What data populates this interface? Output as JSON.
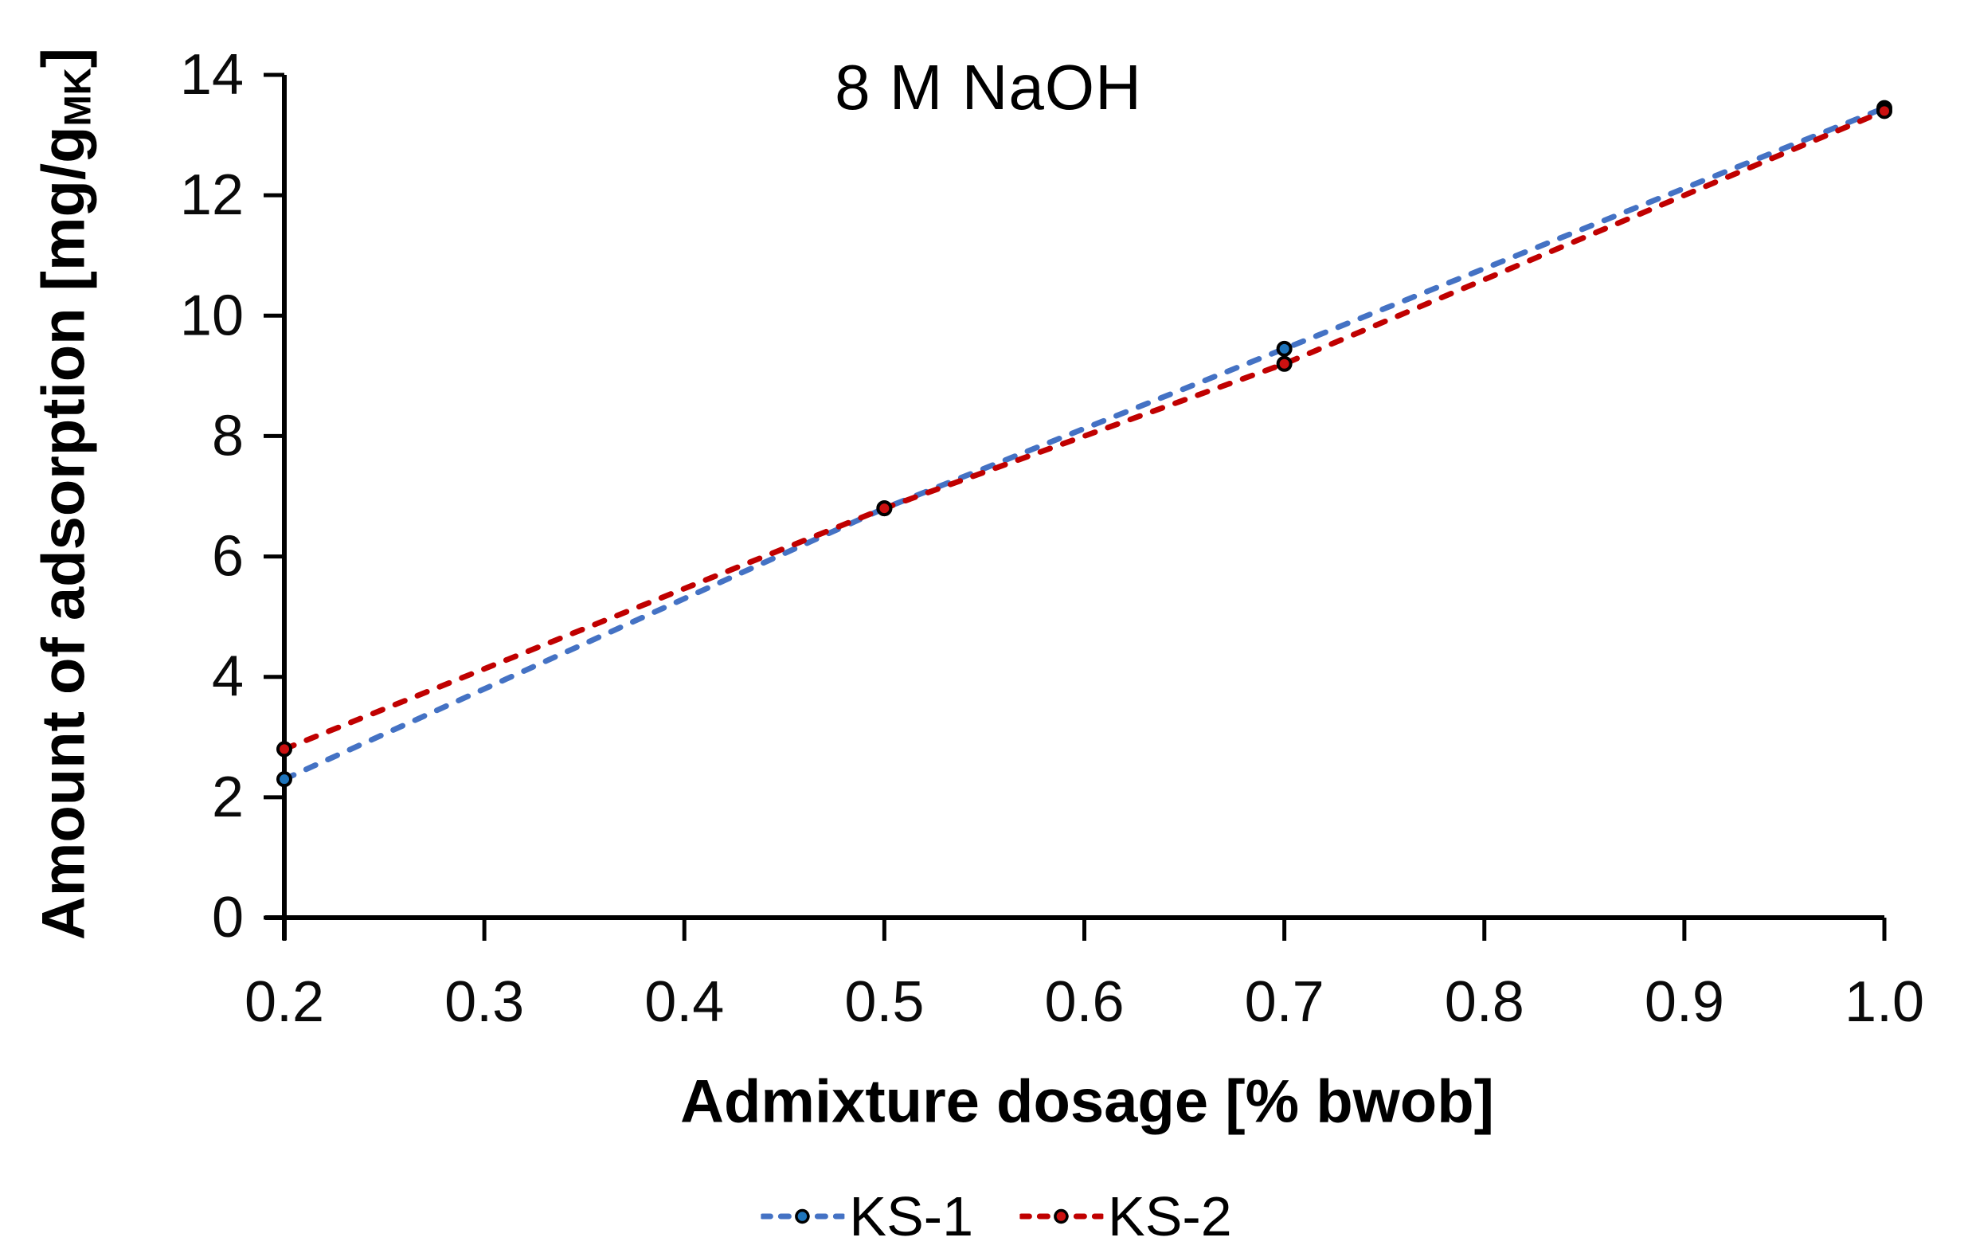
{
  "chart_data": {
    "type": "line",
    "title": "8 M NaOH",
    "xlabel": "Admixture dosage [% bwob]",
    "ylabel": "Amount of adsorption [mg/g_MK]",
    "ylabel_parts": {
      "pre": "Amount of adsorption [mg/g",
      "sub": "MK",
      "post": "]"
    },
    "x": [
      0.2,
      0.5,
      0.7,
      1.0
    ],
    "series": [
      {
        "name": "KS-1",
        "values": [
          2.3,
          6.8,
          9.45,
          13.45
        ],
        "line_color": "#4472C4",
        "marker_color": "#1F75BC"
      },
      {
        "name": "KS-2",
        "values": [
          2.8,
          6.8,
          9.2,
          13.4
        ],
        "line_color": "#C00000",
        "marker_color": "#CC1111"
      }
    ],
    "xlim": [
      0.2,
      1.0
    ],
    "ylim": [
      0,
      14
    ],
    "x_ticks": [
      "0.2",
      "0.3",
      "0.4",
      "0.5",
      "0.6",
      "0.7",
      "0.8",
      "0.9",
      "1.0"
    ],
    "y_ticks": [
      "0",
      "2",
      "4",
      "6",
      "8",
      "10",
      "12",
      "14"
    ],
    "grid": "off",
    "legend_position": "bottom",
    "line_style": "dashed",
    "marker": "circle",
    "axis_color": "#000000",
    "background_color": "#FFFFFF"
  }
}
